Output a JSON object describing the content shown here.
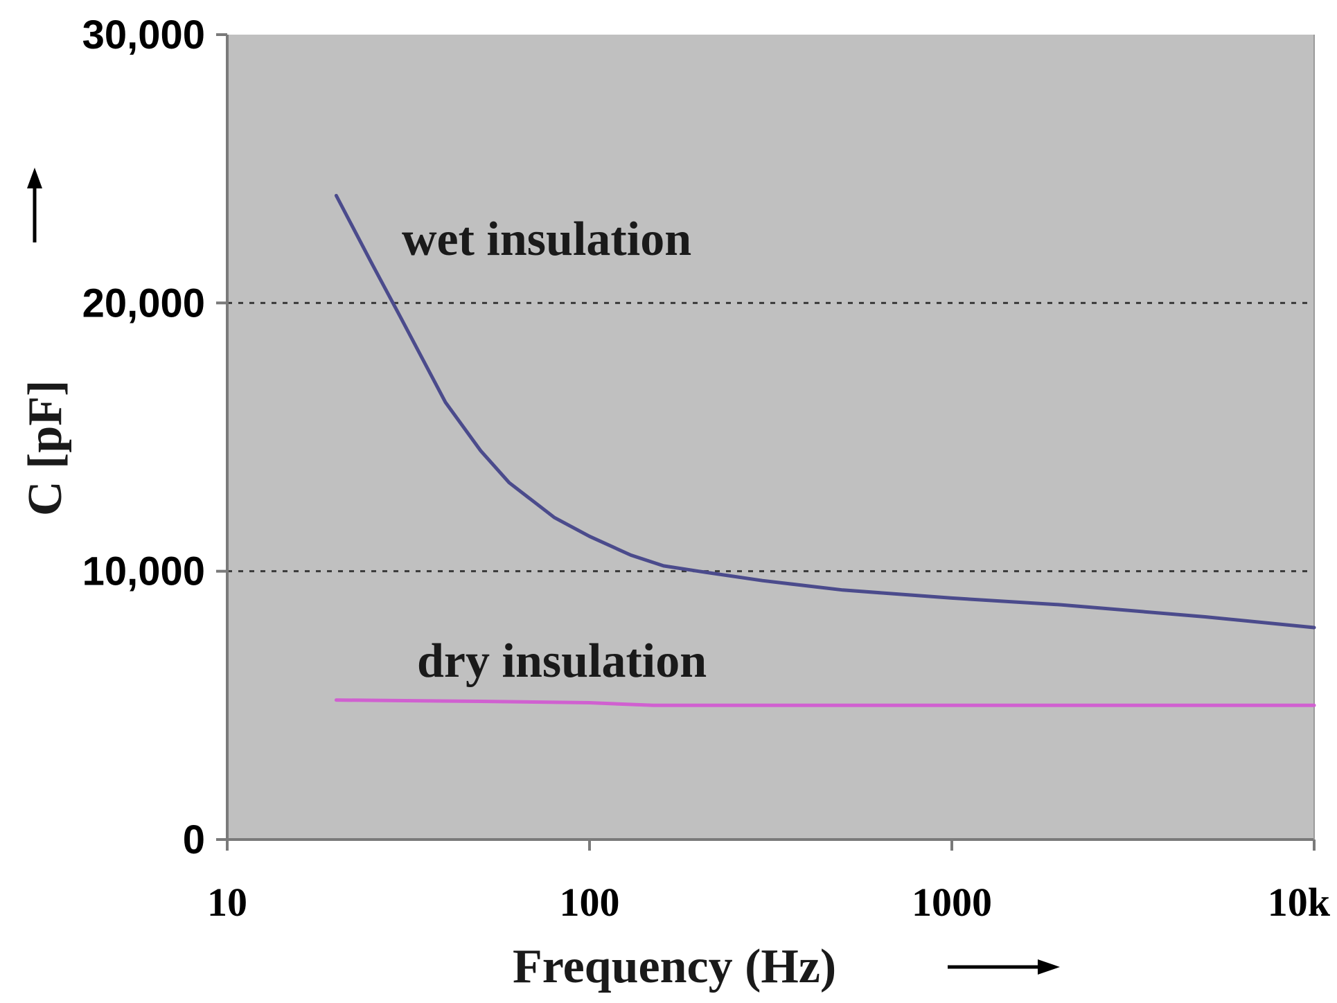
{
  "chart_data": {
    "type": "line",
    "title": "",
    "xlabel": "Frequency (Hz)",
    "ylabel": "C [pF]",
    "x_scale": "log",
    "xlim": [
      10,
      10000
    ],
    "ylim": [
      0,
      30000
    ],
    "x_ticks": [
      {
        "value": 10,
        "label": "10"
      },
      {
        "value": 100,
        "label": "100"
      },
      {
        "value": 1000,
        "label": "1000"
      },
      {
        "value": 10000,
        "label": "10k"
      }
    ],
    "y_ticks": [
      {
        "value": 0,
        "label": "0"
      },
      {
        "value": 10000,
        "label": "10,000"
      },
      {
        "value": 20000,
        "label": "20,000"
      },
      {
        "value": 30000,
        "label": "30,000"
      }
    ],
    "gridlines_y": [
      10000,
      20000
    ],
    "grid_style": "dotted",
    "plot_background": "#c0c0c0",
    "series": [
      {
        "name": "wet insulation",
        "color": "#4b4b8c",
        "points": [
          [
            20,
            24000
          ],
          [
            25,
            21500
          ],
          [
            30,
            19500
          ],
          [
            40,
            16300
          ],
          [
            50,
            14500
          ],
          [
            60,
            13300
          ],
          [
            80,
            12000
          ],
          [
            100,
            11300
          ],
          [
            130,
            10600
          ],
          [
            160,
            10200
          ],
          [
            200,
            10000
          ],
          [
            300,
            9650
          ],
          [
            500,
            9300
          ],
          [
            1000,
            9000
          ],
          [
            2000,
            8750
          ],
          [
            5000,
            8300
          ],
          [
            10000,
            7900
          ]
        ]
      },
      {
        "name": "dry insulation",
        "color": "#d060d0",
        "points": [
          [
            20,
            5200
          ],
          [
            50,
            5150
          ],
          [
            100,
            5100
          ],
          [
            150,
            5000
          ],
          [
            1000,
            5000
          ],
          [
            10000,
            5000
          ]
        ]
      }
    ]
  }
}
